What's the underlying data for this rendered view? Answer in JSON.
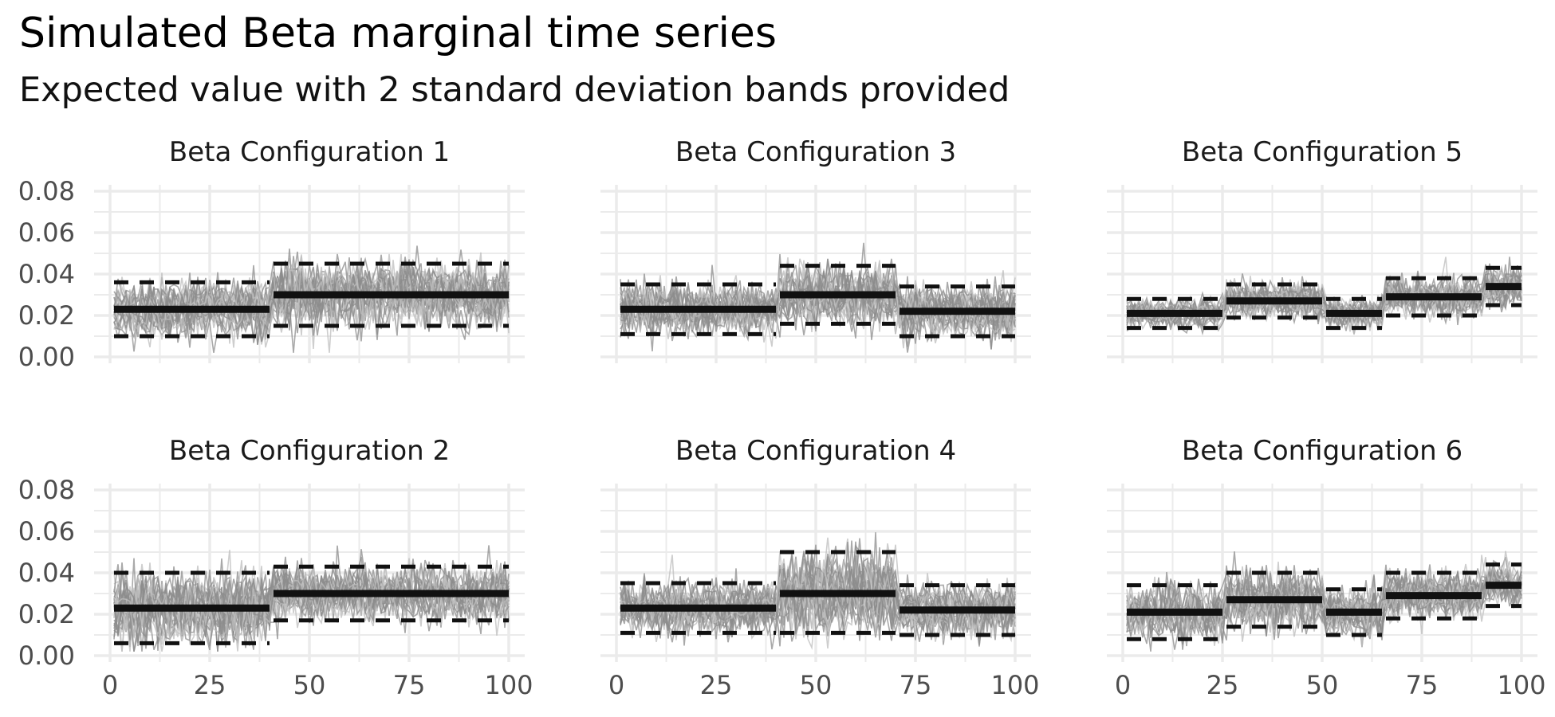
{
  "title": "Simulated Beta marginal time series",
  "subtitle": "Expected value with 2 standard deviation bands provided",
  "chart_data": {
    "type": "line",
    "title": "Simulated Beta marginal time series",
    "subtitle": "Expected value with 2 standard deviation bands provided",
    "xlabel": "",
    "ylabel": "",
    "xlim": [
      0,
      100
    ],
    "ylim": [
      0,
      0.08
    ],
    "x_ticks": [
      0,
      25,
      50,
      75,
      100
    ],
    "y_ticks": [
      0.0,
      0.02,
      0.04,
      0.06,
      0.08
    ],
    "x_tick_labels": [
      "0",
      "25",
      "50",
      "75",
      "100"
    ],
    "y_tick_labels": [
      "0.00",
      "0.02",
      "0.04",
      "0.06",
      "0.08"
    ],
    "grid": true,
    "legend": "none",
    "colors": {
      "simulated": "#8c8c8c",
      "simulated_light": "#bdbdbd",
      "mean": "#111111",
      "band": "#111111",
      "grid": "#ebebeb"
    },
    "facet_layout": {
      "rows": 2,
      "cols": 3,
      "order": [
        1,
        3,
        5,
        2,
        4,
        6
      ]
    },
    "panels": [
      {
        "name": "Beta Configuration 1",
        "segments": [
          {
            "x": [
              1,
              40
            ],
            "mean": 0.023,
            "lower": 0.01,
            "upper": 0.036
          },
          {
            "x": [
              41,
              100
            ],
            "mean": 0.03,
            "lower": 0.015,
            "upper": 0.045
          }
        ]
      },
      {
        "name": "Beta Configuration 2",
        "segments": [
          {
            "x": [
              1,
              40
            ],
            "mean": 0.023,
            "lower": 0.006,
            "upper": 0.04
          },
          {
            "x": [
              41,
              100
            ],
            "mean": 0.03,
            "lower": 0.017,
            "upper": 0.043
          }
        ]
      },
      {
        "name": "Beta Configuration 3",
        "segments": [
          {
            "x": [
              1,
              40
            ],
            "mean": 0.023,
            "lower": 0.011,
            "upper": 0.035
          },
          {
            "x": [
              41,
              70
            ],
            "mean": 0.03,
            "lower": 0.016,
            "upper": 0.044
          },
          {
            "x": [
              71,
              100
            ],
            "mean": 0.022,
            "lower": 0.01,
            "upper": 0.034
          }
        ]
      },
      {
        "name": "Beta Configuration 4",
        "segments": [
          {
            "x": [
              1,
              40
            ],
            "mean": 0.023,
            "lower": 0.011,
            "upper": 0.035
          },
          {
            "x": [
              41,
              70
            ],
            "mean": 0.03,
            "lower": 0.011,
            "upper": 0.05
          },
          {
            "x": [
              71,
              100
            ],
            "mean": 0.022,
            "lower": 0.01,
            "upper": 0.034
          }
        ]
      },
      {
        "name": "Beta Configuration 5",
        "segments": [
          {
            "x": [
              1,
              25
            ],
            "mean": 0.021,
            "lower": 0.014,
            "upper": 0.028
          },
          {
            "x": [
              26,
              50
            ],
            "mean": 0.027,
            "lower": 0.019,
            "upper": 0.035
          },
          {
            "x": [
              51,
              65
            ],
            "mean": 0.021,
            "lower": 0.014,
            "upper": 0.028
          },
          {
            "x": [
              66,
              90
            ],
            "mean": 0.029,
            "lower": 0.02,
            "upper": 0.038
          },
          {
            "x": [
              91,
              100
            ],
            "mean": 0.034,
            "lower": 0.025,
            "upper": 0.043
          }
        ]
      },
      {
        "name": "Beta Configuration 6",
        "segments": [
          {
            "x": [
              1,
              25
            ],
            "mean": 0.021,
            "lower": 0.008,
            "upper": 0.034
          },
          {
            "x": [
              26,
              50
            ],
            "mean": 0.027,
            "lower": 0.014,
            "upper": 0.04
          },
          {
            "x": [
              51,
              65
            ],
            "mean": 0.021,
            "lower": 0.01,
            "upper": 0.032
          },
          {
            "x": [
              66,
              90
            ],
            "mean": 0.029,
            "lower": 0.018,
            "upper": 0.04
          },
          {
            "x": [
              91,
              100
            ],
            "mean": 0.034,
            "lower": 0.024,
            "upper": 0.044
          }
        ]
      }
    ]
  }
}
